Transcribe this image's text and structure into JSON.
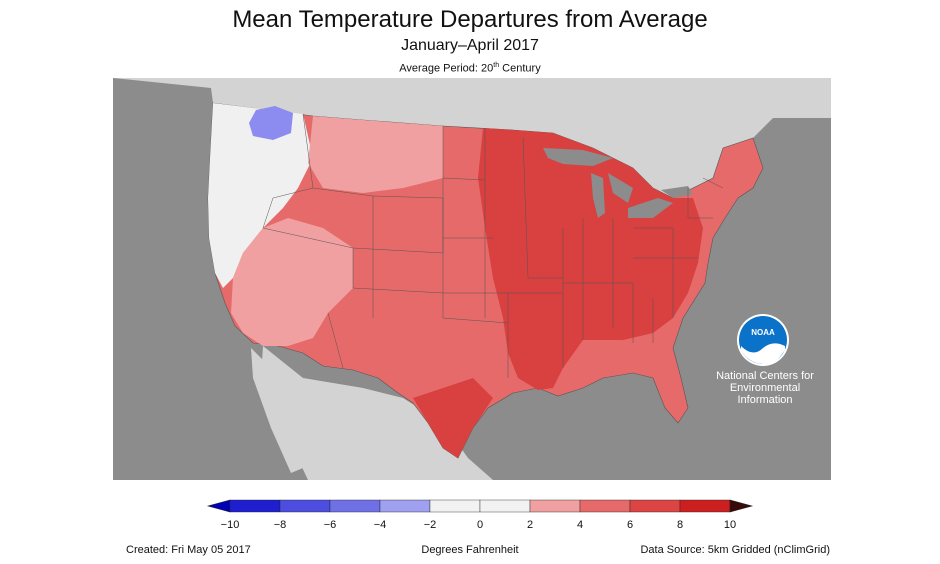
{
  "title": "Mean Temperature Departures from Average",
  "subtitle": "January–April 2017",
  "period": {
    "prefix": "Average Period: 20",
    "sup": "th",
    "suffix": " Century"
  },
  "noaa": {
    "logo_text": "NOAA",
    "line1": "National Centers for",
    "line2": "Environmental",
    "line3": "Information"
  },
  "legend": {
    "ticks": [
      "−10",
      "−8",
      "−6",
      "−4",
      "−2",
      "0",
      "2",
      "4",
      "6",
      "8",
      "10"
    ],
    "colors": [
      "#1f1fd0",
      "#4d4de0",
      "#7070e6",
      "#a0a0f0",
      "#f2f2f2",
      "#f2f2f2",
      "#f0a0a0",
      "#e76a6a",
      "#dd4545",
      "#cc1f1f"
    ],
    "under_color": "#0000b8",
    "over_color": "#3a0a0a",
    "unit": "Degrees Fahrenheit"
  },
  "footer": {
    "created": "Created: Fri May 05 2017",
    "source": "Data Source: 5km Gridded (nClimGrid)"
  },
  "map_colors": {
    "ocean": "#8c8c8c",
    "land_other": "#d3d3d3",
    "near_average": "#f0f0f0",
    "light_warm": "#f0a0a0",
    "warm": "#e76a6a",
    "much_warm": "#d94040",
    "cool": "#8c8cf0"
  }
}
